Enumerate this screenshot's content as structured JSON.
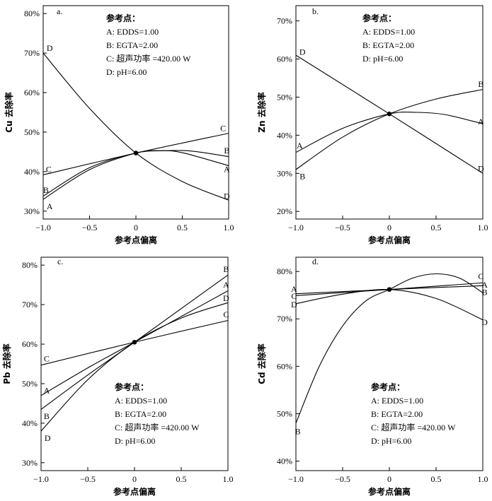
{
  "chart_data": [
    {
      "type": "line",
      "panel": "a.",
      "xlabel": "参考点偏离",
      "ylabel": "Cu 去除率",
      "xlim": [
        -1.0,
        1.0
      ],
      "ylim": [
        28,
        82
      ],
      "xticks": [
        "−1.0",
        "−0.5",
        "0",
        "0.5",
        "1.0"
      ],
      "yticks": [
        "30%",
        "40%",
        "50%",
        "60%",
        "70%",
        "80%"
      ],
      "reference": {
        "x": 0,
        "y": 44.7
      },
      "legend_title": "参考点：",
      "legend_lines": [
        "A: EDDS=1.00",
        "B: EGTA=2.00",
        "C: 超声功率 =420.00 W",
        "D: pH=6.00"
      ],
      "series": [
        {
          "name": "A",
          "x": [
            -1.0,
            -0.5,
            0,
            0.25,
            0.5,
            1.0
          ],
          "y": [
            33.0,
            40.5,
            44.7,
            45.3,
            44.8,
            41.5
          ]
        },
        {
          "name": "B",
          "x": [
            -1.0,
            -0.5,
            0,
            0.3,
            0.6,
            1.0
          ],
          "y": [
            33.8,
            41.0,
            44.7,
            45.3,
            45.2,
            43.8
          ]
        },
        {
          "name": "C",
          "x": [
            -1.0,
            0,
            1.0
          ],
          "y": [
            39.2,
            44.7,
            49.7
          ]
        },
        {
          "name": "D",
          "x": [
            -1.0,
            -0.5,
            0,
            0.5,
            1.0
          ],
          "y": [
            70.0,
            56.0,
            44.7,
            37.5,
            32.8
          ]
        }
      ],
      "labels": [
        {
          "text": "D",
          "x": -0.93,
          "y": 71.3
        },
        {
          "text": "C",
          "x": -0.94,
          "y": 40.6
        },
        {
          "text": "B",
          "x": -0.97,
          "y": 35.3
        },
        {
          "text": "A",
          "x": -0.93,
          "y": 31.2
        },
        {
          "text": "C",
          "x": 0.94,
          "y": 51.0
        },
        {
          "text": "B",
          "x": 0.98,
          "y": 45.3
        },
        {
          "text": "A",
          "x": 0.98,
          "y": 40.6
        },
        {
          "text": "D",
          "x": 0.98,
          "y": 33.8
        }
      ]
    },
    {
      "type": "line",
      "panel": "b.",
      "xlabel": "参考点偏离",
      "ylabel": "Zn 去除率",
      "xlim": [
        -1.0,
        1.0
      ],
      "ylim": [
        18,
        74
      ],
      "xticks": [
        "−1.0",
        "−0.5",
        "0",
        "0.5",
        "1.0"
      ],
      "yticks": [
        "20%",
        "30%",
        "40%",
        "50%",
        "60%",
        "70%"
      ],
      "reference": {
        "x": 0,
        "y": 45.6
      },
      "legend_title": "参考点：",
      "legend_lines": [
        "A: EDDS=1.00",
        "B: EGTA=2.00",
        "D: pH=6.00"
      ],
      "series": [
        {
          "name": "A",
          "x": [
            -1.0,
            -0.5,
            0,
            0.3,
            0.6,
            1.0
          ],
          "y": [
            35.5,
            41.8,
            45.6,
            46.0,
            45.4,
            43.0
          ]
        },
        {
          "name": "B",
          "x": [
            -1.0,
            -0.5,
            0,
            0.5,
            1.0
          ],
          "y": [
            31.0,
            39.5,
            45.6,
            49.5,
            52.0
          ]
        },
        {
          "name": "D",
          "x": [
            -1.0,
            0,
            1.0
          ],
          "y": [
            61.0,
            45.6,
            30.0
          ]
        }
      ],
      "labels": [
        {
          "text": "D",
          "x": -0.93,
          "y": 61.9
        },
        {
          "text": "A",
          "x": -0.96,
          "y": 37.3
        },
        {
          "text": "B",
          "x": -0.93,
          "y": 29.2
        },
        {
          "text": "B",
          "x": 0.98,
          "y": 53.4
        },
        {
          "text": "A",
          "x": 0.98,
          "y": 43.6
        },
        {
          "text": "D",
          "x": 0.98,
          "y": 31.3
        }
      ]
    },
    {
      "type": "line",
      "panel": "c.",
      "xlabel": "参考点偏离",
      "ylabel": "Pb 去除率",
      "xlim": [
        -1.0,
        1.0
      ],
      "ylim": [
        28,
        82
      ],
      "xticks": [
        "−1.0",
        "−0.5",
        "0",
        "0.5",
        "1.0"
      ],
      "yticks": [
        "30%",
        "40%",
        "50%",
        "60%",
        "70%",
        "80%"
      ],
      "reference": {
        "x": 0,
        "y": 60.5
      },
      "legend_title": "参考点：",
      "legend_lines": [
        "A: EDDS=1.00",
        "B: EGTA=2.00",
        "C: 超声功率 =420.00 W",
        "D: pH=6.00"
      ],
      "series": [
        {
          "name": "A",
          "x": [
            -1.0,
            -0.5,
            0,
            0.5,
            1.0
          ],
          "y": [
            47.0,
            54.0,
            60.5,
            67.0,
            73.5
          ]
        },
        {
          "name": "B",
          "x": [
            -1.0,
            -0.5,
            0,
            0.5,
            1.0
          ],
          "y": [
            43.5,
            52.2,
            60.5,
            69.0,
            77.5
          ]
        },
        {
          "name": "C",
          "x": [
            -1.0,
            0,
            1.0
          ],
          "y": [
            54.7,
            60.5,
            66.0
          ]
        },
        {
          "name": "D",
          "x": [
            -1.0,
            -0.5,
            0,
            0.5,
            1.0
          ],
          "y": [
            38.0,
            51.0,
            60.5,
            66.6,
            70.5
          ]
        }
      ],
      "labels": [
        {
          "text": "C",
          "x": -0.94,
          "y": 56.3
        },
        {
          "text": "A",
          "x": -0.94,
          "y": 48.3
        },
        {
          "text": "B",
          "x": -0.94,
          "y": 41.8
        },
        {
          "text": "D",
          "x": -0.93,
          "y": 36.2
        },
        {
          "text": "B",
          "x": 0.98,
          "y": 79.0
        },
        {
          "text": "A",
          "x": 0.98,
          "y": 75.0
        },
        {
          "text": "D",
          "x": 0.98,
          "y": 71.6
        },
        {
          "text": "C",
          "x": 0.98,
          "y": 67.5
        }
      ]
    },
    {
      "type": "line",
      "panel": "d.",
      "xlabel": "参考点偏离",
      "ylabel": "Cd 去除率",
      "xlim": [
        -1.0,
        1.0
      ],
      "ylim": [
        38,
        83
      ],
      "xticks": [
        "−1.0",
        "−0.5",
        "0",
        "0.5",
        "1.0"
      ],
      "yticks": [
        "40%",
        "50%",
        "60%",
        "70%",
        "80%"
      ],
      "reference": {
        "x": 0,
        "y": 76.2
      },
      "legend_title": "参考点：",
      "legend_lines": [
        "A: EDDS=1.00",
        "B: EGTA=2.00",
        "C: 超声功率 =420.00 W",
        "D: pH=6.00"
      ],
      "series": [
        {
          "name": "A",
          "x": [
            -1.0,
            0,
            1.0
          ],
          "y": [
            75.3,
            76.2,
            77.0
          ]
        },
        {
          "name": "B",
          "x": [
            -1.0,
            -0.75,
            -0.5,
            -0.25,
            0,
            0.25,
            0.5,
            0.75,
            1.0
          ],
          "y": [
            48.0,
            60.0,
            68.5,
            73.8,
            76.2,
            78.6,
            79.5,
            78.6,
            75.5
          ]
        },
        {
          "name": "C",
          "x": [
            -1.0,
            0,
            1.0
          ],
          "y": [
            74.9,
            76.2,
            77.6
          ]
        },
        {
          "name": "D",
          "x": [
            -1.0,
            -0.5,
            0,
            0.5,
            1.0
          ],
          "y": [
            73.2,
            75.2,
            76.2,
            74.3,
            69.8
          ]
        }
      ],
      "labels": [
        {
          "text": "A",
          "x": -1.02,
          "y": 76.3
        },
        {
          "text": "C",
          "x": -1.02,
          "y": 74.8
        },
        {
          "text": "D",
          "x": -1.02,
          "y": 73.0
        },
        {
          "text": "B",
          "x": -0.98,
          "y": 46.3
        },
        {
          "text": "C",
          "x": 0.98,
          "y": 79.0
        },
        {
          "text": "A",
          "x": 1.02,
          "y": 77.2
        },
        {
          "text": "B",
          "x": 1.02,
          "y": 75.6
        },
        {
          "text": "D",
          "x": 1.02,
          "y": 69.3
        }
      ]
    }
  ]
}
